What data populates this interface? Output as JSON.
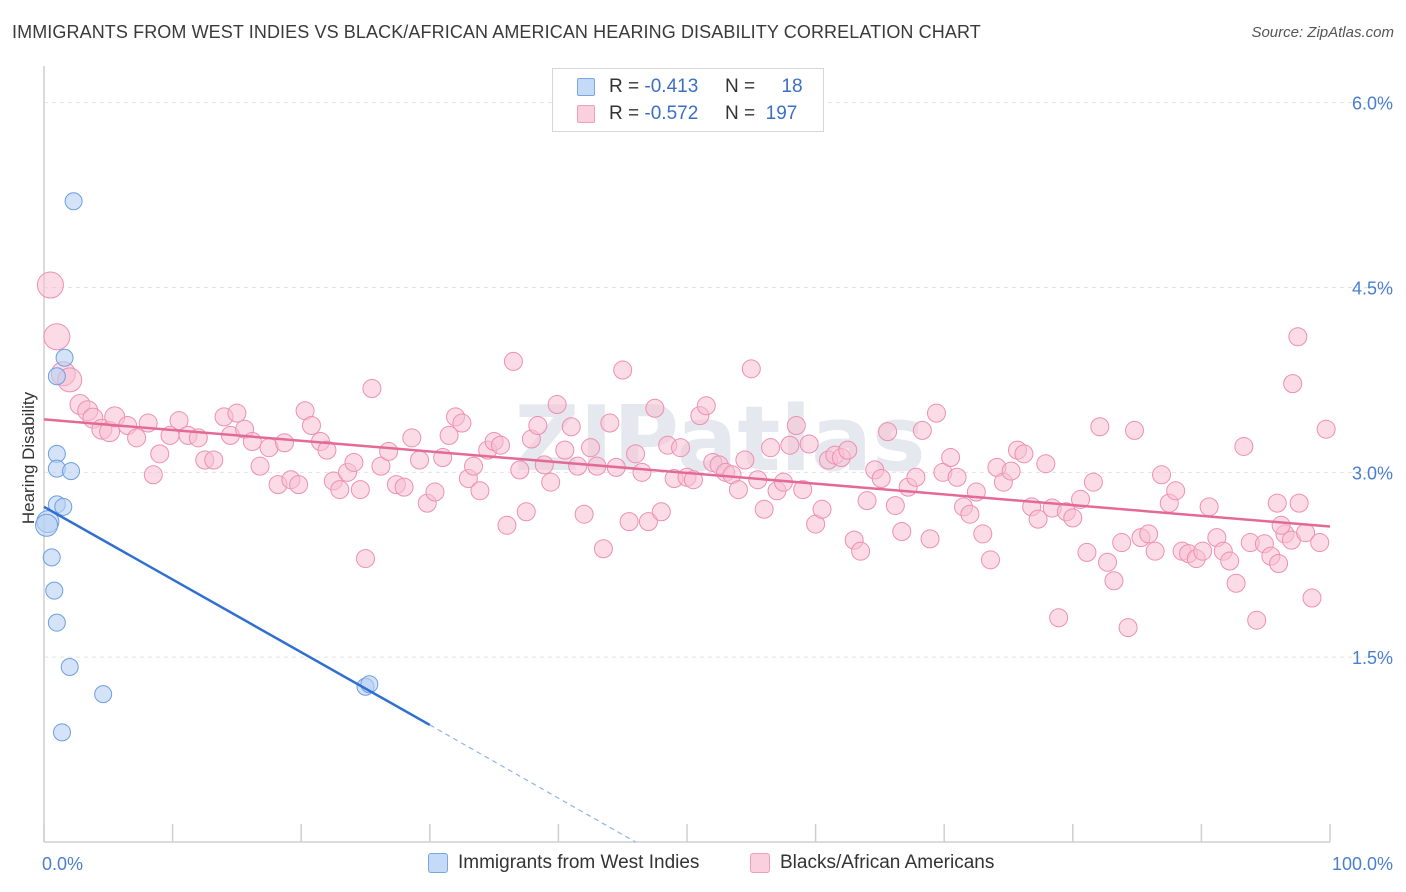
{
  "title": "IMMIGRANTS FROM WEST INDIES VS BLACK/AFRICAN AMERICAN HEARING DISABILITY CORRELATION CHART",
  "source": "Source: ZipAtlas.com",
  "legend": {
    "rows": [
      {
        "r_label": "R =",
        "r_value": "-0.413",
        "n_label": "N =",
        "n_value": "18",
        "color": "#9cc1ef"
      },
      {
        "r_label": "R =",
        "r_value": "-0.572",
        "n_label": "N =",
        "n_value": "197",
        "color": "#f5b3c8"
      }
    ]
  },
  "colors": {
    "blue": "#6fa3e6",
    "blue_line": "#2f6fd0",
    "pink": "#f08fb0",
    "pink_line": "#e46a96",
    "axis_text": "#4a7fd0"
  },
  "chart_data": {
    "type": "scatter",
    "xlabel": "",
    "ylabel": "Hearing Disability",
    "x_tick_labels": [
      "0.0%",
      "100.0%"
    ],
    "y_tick_labels": [
      "1.5%",
      "3.0%",
      "4.5%",
      "6.0%"
    ],
    "y_ticks": [
      1.5,
      3.0,
      4.5,
      6.0
    ],
    "xlim": [
      0,
      100
    ],
    "ylim": [
      0,
      6.2
    ],
    "grid": true,
    "watermark": "ZIPatlas",
    "series": [
      {
        "name": "Immigrants from West Indies",
        "color": "#6fa3e6",
        "points": [
          [
            2.3,
            5.2
          ],
          [
            1.0,
            3.78
          ],
          [
            1.6,
            3.93
          ],
          [
            1.0,
            3.15
          ],
          [
            1.0,
            3.03
          ],
          [
            2.1,
            3.01
          ],
          [
            1.0,
            2.74
          ],
          [
            1.5,
            2.72
          ],
          [
            0.3,
            2.6
          ],
          [
            0.2,
            2.57
          ],
          [
            0.6,
            2.31
          ],
          [
            0.8,
            2.04
          ],
          [
            1.0,
            1.78
          ],
          [
            2.0,
            1.42
          ],
          [
            4.6,
            1.2
          ],
          [
            1.4,
            0.89
          ],
          [
            25.0,
            1.26
          ],
          [
            25.3,
            1.28
          ]
        ],
        "trend": {
          "x": [
            0.0,
            30.0
          ],
          "y": [
            2.72,
            0.95
          ]
        },
        "trend_dashed": {
          "x": [
            30.0,
            46.0
          ],
          "y": [
            0.95,
            0.0
          ]
        }
      },
      {
        "name": "Blacks/African Americans",
        "color": "#f08fb0",
        "points": [
          [
            0.5,
            4.52
          ],
          [
            1.0,
            4.1
          ],
          [
            1.5,
            3.8
          ],
          [
            2.0,
            3.75
          ],
          [
            2.8,
            3.55
          ],
          [
            3.4,
            3.5
          ],
          [
            3.8,
            3.44
          ],
          [
            4.5,
            3.35
          ],
          [
            5.1,
            3.33
          ],
          [
            5.5,
            3.45
          ],
          [
            6.5,
            3.38
          ],
          [
            7.2,
            3.28
          ],
          [
            8.1,
            3.4
          ],
          [
            8.5,
            2.98
          ],
          [
            9.0,
            3.15
          ],
          [
            9.8,
            3.3
          ],
          [
            10.5,
            3.42
          ],
          [
            11.2,
            3.3
          ],
          [
            12.0,
            3.28
          ],
          [
            12.5,
            3.1
          ],
          [
            13.2,
            3.1
          ],
          [
            14.0,
            3.45
          ],
          [
            14.5,
            3.3
          ],
          [
            15.0,
            3.48
          ],
          [
            15.6,
            3.35
          ],
          [
            16.2,
            3.25
          ],
          [
            16.8,
            3.05
          ],
          [
            17.5,
            3.2
          ],
          [
            18.2,
            2.9
          ],
          [
            18.7,
            3.24
          ],
          [
            19.2,
            2.94
          ],
          [
            19.8,
            2.9
          ],
          [
            20.3,
            3.5
          ],
          [
            20.8,
            3.38
          ],
          [
            21.5,
            3.25
          ],
          [
            22.0,
            3.18
          ],
          [
            22.5,
            2.93
          ],
          [
            23.0,
            2.86
          ],
          [
            23.6,
            3.0
          ],
          [
            24.1,
            3.08
          ],
          [
            24.6,
            2.86
          ],
          [
            25.0,
            2.3
          ],
          [
            25.5,
            3.68
          ],
          [
            26.2,
            3.05
          ],
          [
            26.8,
            3.17
          ],
          [
            27.4,
            2.9
          ],
          [
            28.0,
            2.88
          ],
          [
            28.6,
            3.28
          ],
          [
            29.2,
            3.1
          ],
          [
            29.8,
            2.75
          ],
          [
            30.4,
            2.84
          ],
          [
            31.0,
            3.12
          ],
          [
            31.5,
            3.3
          ],
          [
            32.0,
            3.45
          ],
          [
            32.5,
            3.4
          ],
          [
            33.0,
            2.95
          ],
          [
            33.4,
            3.05
          ],
          [
            33.9,
            2.85
          ],
          [
            34.5,
            3.18
          ],
          [
            35.0,
            3.25
          ],
          [
            35.5,
            3.22
          ],
          [
            36.0,
            2.57
          ],
          [
            36.5,
            3.9
          ],
          [
            37.0,
            3.02
          ],
          [
            37.5,
            2.68
          ],
          [
            37.9,
            3.27
          ],
          [
            38.4,
            3.38
          ],
          [
            38.9,
            3.06
          ],
          [
            39.4,
            2.92
          ],
          [
            39.9,
            3.55
          ],
          [
            40.5,
            3.18
          ],
          [
            41.0,
            3.37
          ],
          [
            41.5,
            3.05
          ],
          [
            42.0,
            2.66
          ],
          [
            42.5,
            3.2
          ],
          [
            43.0,
            3.05
          ],
          [
            43.5,
            2.38
          ],
          [
            44.0,
            3.4
          ],
          [
            44.5,
            3.04
          ],
          [
            45.0,
            3.83
          ],
          [
            45.5,
            2.6
          ],
          [
            46.0,
            3.15
          ],
          [
            46.5,
            3.0
          ],
          [
            47.0,
            2.6
          ],
          [
            47.5,
            3.52
          ],
          [
            48.0,
            2.68
          ],
          [
            48.5,
            3.22
          ],
          [
            49.0,
            2.95
          ],
          [
            49.5,
            3.2
          ],
          [
            50.0,
            2.96
          ],
          [
            50.5,
            2.94
          ],
          [
            51.0,
            3.46
          ],
          [
            51.5,
            3.54
          ],
          [
            52.0,
            3.08
          ],
          [
            52.5,
            3.06
          ],
          [
            53.0,
            3.0
          ],
          [
            53.5,
            2.98
          ],
          [
            54.0,
            2.86
          ],
          [
            54.5,
            3.1
          ],
          [
            55.0,
            3.84
          ],
          [
            55.5,
            2.94
          ],
          [
            56.0,
            2.7
          ],
          [
            56.5,
            3.2
          ],
          [
            57.0,
            2.85
          ],
          [
            57.5,
            2.92
          ],
          [
            58.0,
            3.22
          ],
          [
            58.5,
            3.38
          ],
          [
            59.0,
            2.86
          ],
          [
            59.5,
            3.23
          ],
          [
            60.0,
            2.58
          ],
          [
            60.5,
            2.7
          ],
          [
            61.0,
            3.1
          ],
          [
            61.5,
            3.14
          ],
          [
            62.0,
            3.12
          ],
          [
            62.5,
            3.18
          ],
          [
            63.0,
            2.45
          ],
          [
            63.5,
            2.36
          ],
          [
            64.0,
            2.77
          ],
          [
            64.6,
            3.02
          ],
          [
            65.1,
            2.95
          ],
          [
            65.6,
            3.33
          ],
          [
            66.2,
            2.73
          ],
          [
            66.7,
            2.52
          ],
          [
            67.2,
            2.88
          ],
          [
            67.8,
            2.96
          ],
          [
            68.3,
            3.34
          ],
          [
            68.9,
            2.46
          ],
          [
            69.4,
            3.48
          ],
          [
            69.9,
            3.0
          ],
          [
            70.5,
            3.12
          ],
          [
            71.0,
            2.96
          ],
          [
            71.5,
            2.72
          ],
          [
            72.0,
            2.66
          ],
          [
            72.5,
            2.84
          ],
          [
            73.0,
            2.5
          ],
          [
            73.6,
            2.29
          ],
          [
            74.1,
            3.04
          ],
          [
            74.6,
            2.92
          ],
          [
            75.2,
            3.01
          ],
          [
            75.7,
            3.18
          ],
          [
            76.2,
            3.15
          ],
          [
            76.8,
            2.72
          ],
          [
            77.3,
            2.62
          ],
          [
            77.9,
            3.07
          ],
          [
            78.4,
            2.71
          ],
          [
            78.9,
            1.82
          ],
          [
            79.5,
            2.68
          ],
          [
            80.0,
            2.63
          ],
          [
            80.6,
            2.78
          ],
          [
            81.1,
            2.35
          ],
          [
            81.6,
            2.92
          ],
          [
            82.1,
            3.37
          ],
          [
            82.7,
            2.27
          ],
          [
            83.2,
            2.12
          ],
          [
            83.8,
            2.43
          ],
          [
            84.3,
            1.74
          ],
          [
            84.8,
            3.34
          ],
          [
            85.3,
            2.47
          ],
          [
            85.9,
            2.5
          ],
          [
            86.4,
            2.36
          ],
          [
            86.9,
            2.98
          ],
          [
            87.5,
            2.75
          ],
          [
            88.0,
            2.85
          ],
          [
            88.5,
            2.36
          ],
          [
            89.0,
            2.34
          ],
          [
            89.6,
            2.3
          ],
          [
            90.1,
            2.36
          ],
          [
            90.6,
            2.72
          ],
          [
            91.2,
            2.47
          ],
          [
            91.7,
            2.36
          ],
          [
            92.2,
            2.28
          ],
          [
            92.7,
            2.1
          ],
          [
            93.3,
            3.21
          ],
          [
            93.8,
            2.43
          ],
          [
            94.3,
            1.8
          ],
          [
            94.9,
            2.42
          ],
          [
            95.4,
            2.32
          ],
          [
            96.0,
            2.26
          ],
          [
            96.5,
            2.5
          ],
          [
            97.0,
            2.45
          ],
          [
            97.6,
            2.75
          ],
          [
            98.1,
            2.51
          ],
          [
            95.9,
            2.75
          ],
          [
            96.2,
            2.57
          ],
          [
            97.5,
            4.1
          ],
          [
            97.1,
            3.72
          ],
          [
            98.6,
            1.98
          ],
          [
            99.2,
            2.43
          ],
          [
            99.7,
            3.35
          ]
        ],
        "trend": {
          "x": [
            0.0,
            100.0
          ],
          "y": [
            3.43,
            2.56
          ]
        }
      }
    ]
  },
  "bottom_legend": [
    {
      "label": "Immigrants from West Indies",
      "color": "#9cc1ef"
    },
    {
      "label": "Blacks/African Americans",
      "color": "#f5b3c8"
    }
  ]
}
